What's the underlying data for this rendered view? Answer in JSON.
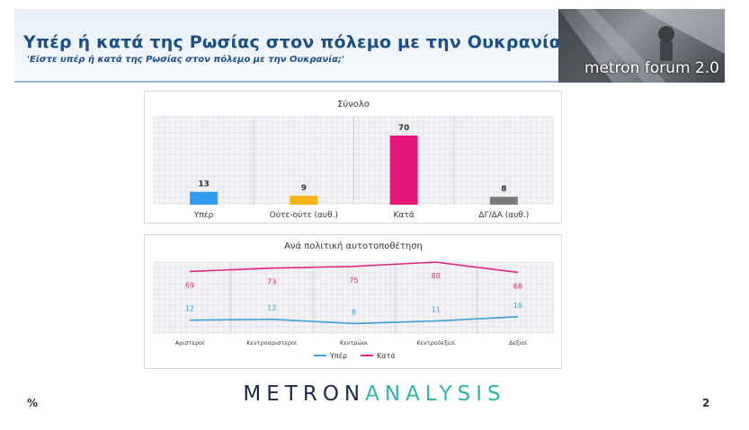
{
  "header": {
    "title": "Υπέρ ή κατά της Ρωσίας στον πόλεμο με την Ουκρανία",
    "subtitle": "'Είστε υπέρ ή κατά της Ρωσίας στον πόλεμο με την Ουκρανία;'",
    "logo_text": "metron forum 2.0"
  },
  "footer": {
    "brand_part1": "METRON",
    "brand_part2": "ANALYSIS",
    "percent_sign": "%",
    "page_number": "2"
  },
  "chart_data": [
    {
      "type": "bar",
      "title": "Σύνολο",
      "categories": [
        "Υπέρ",
        "Ούτε-ούτε (αυθ.)",
        "Κατά",
        "ΔΓ/ΔΑ (αυθ.)"
      ],
      "values": [
        13,
        9,
        70,
        8
      ],
      "colors": [
        "#2e9df2",
        "#f7b416",
        "#e6177a",
        "#7b7b7b"
      ],
      "ylim": [
        0,
        100
      ],
      "grid": true
    },
    {
      "type": "line",
      "title": "Ανά πολιτική αυτοτοποθέτηση",
      "categories": [
        "Αριστεροί",
        "Κεντροαριστεροί",
        "Κεντρώοι",
        "Κεντροδεξιοί",
        "Δεξιοί"
      ],
      "series": [
        {
          "name": "Υπέρ",
          "values": [
            12,
            13,
            8,
            11,
            16
          ],
          "color": "#3aa0e0"
        },
        {
          "name": "Κατά",
          "values": [
            69,
            73,
            75,
            80,
            68
          ],
          "color": "#e0267f"
        }
      ],
      "ylim": [
        0,
        100
      ],
      "legend": "bottom",
      "grid": true
    }
  ]
}
